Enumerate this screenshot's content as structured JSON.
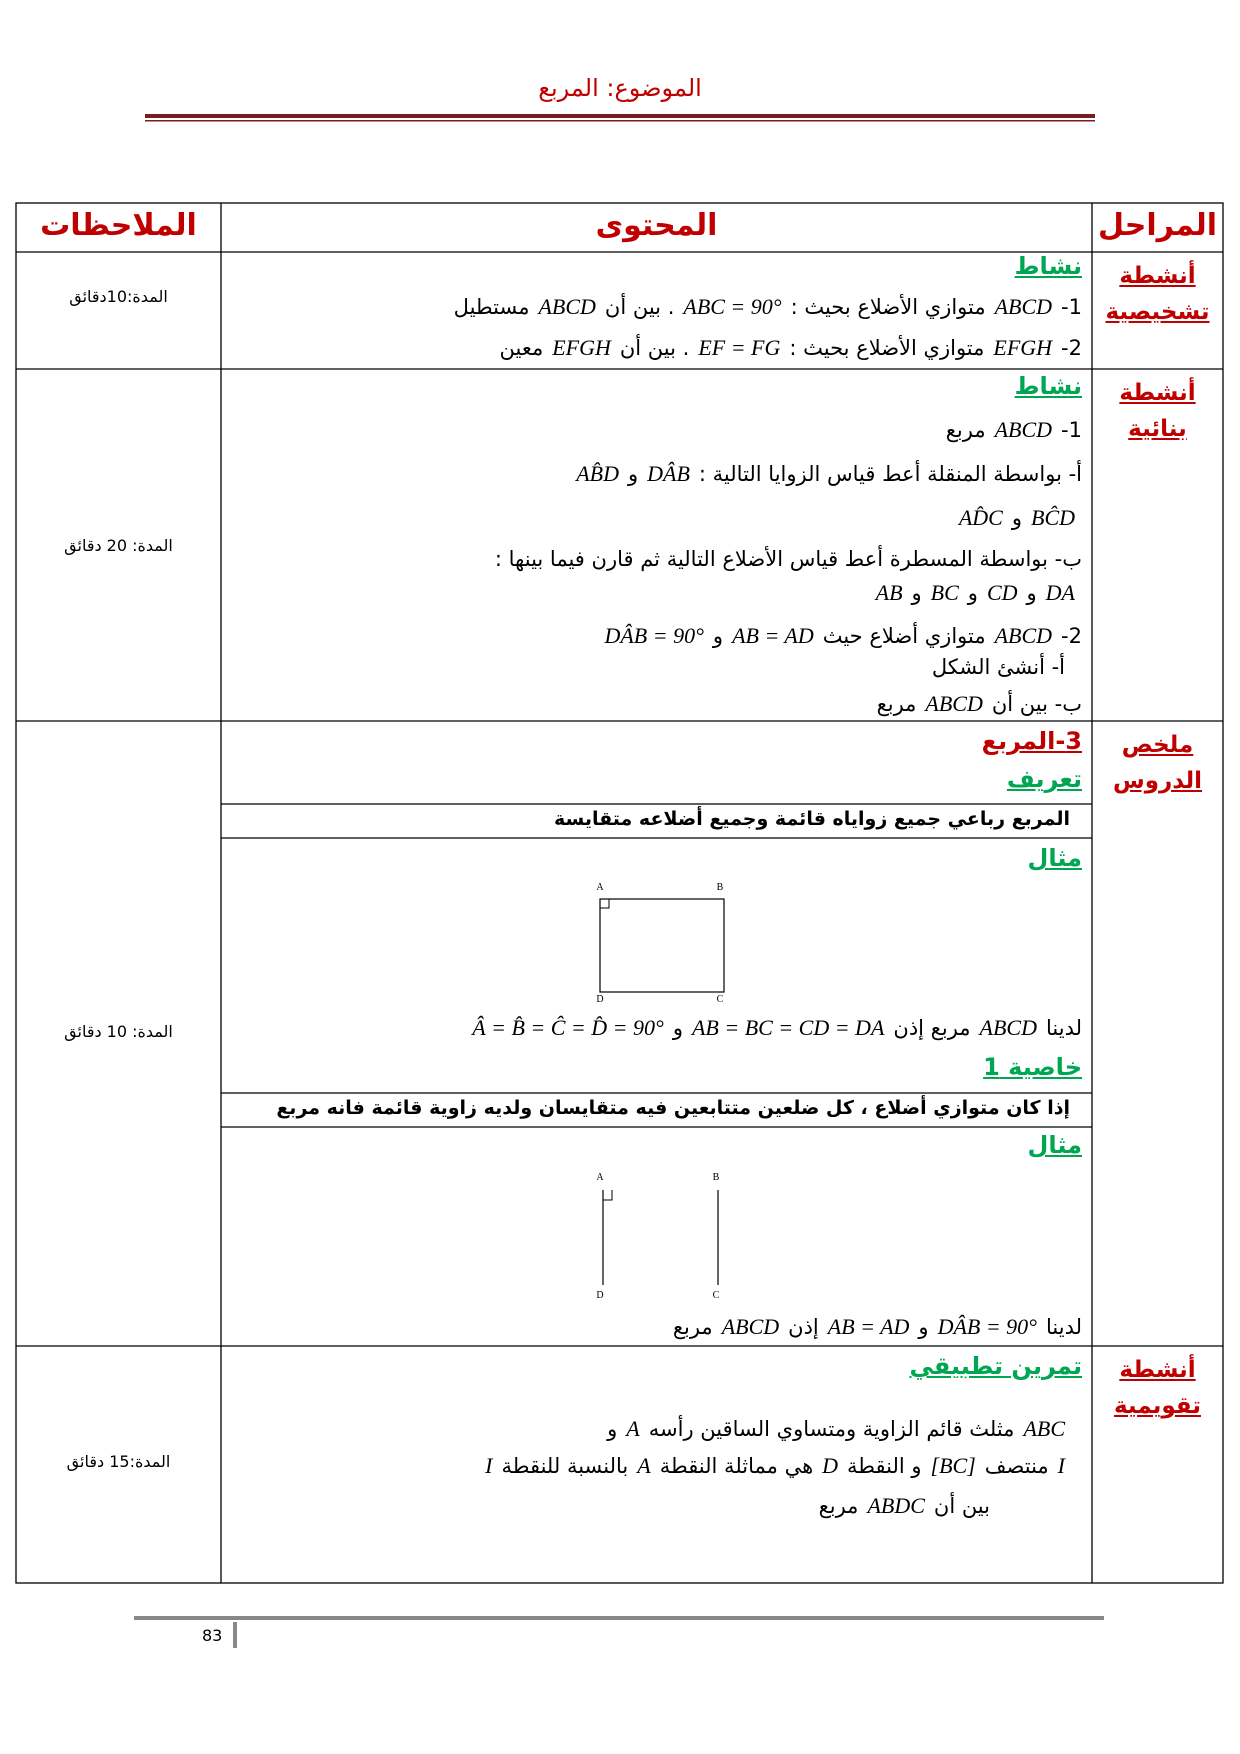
{
  "header": {
    "title": "الموضوع: المربع"
  },
  "table": {
    "headers": [
      "المراحل",
      "المحتوى",
      "الملاحظات"
    ],
    "rows": [
      {
        "phase": [
          "أنشطة",
          "تشخيصية"
        ],
        "notes": "المدة:10دقائق",
        "content": [
          {
            "heading": "نشاط",
            "color": "#00a651"
          },
          {
            "line": [
              "1-",
              "ABCD",
              "متوازي الأضلاع بحيث :",
              "ABC = 90°",
              ". بين أن",
              "ABCD",
              "مستطيل"
            ]
          },
          {
            "line": [
              "2-",
              "EFGH",
              "متوازي الأضلاع بحيث :",
              "EF = FG",
              ". بين أن",
              "EFGH",
              "معين"
            ]
          }
        ]
      },
      {
        "phase": [
          "أنشطة",
          "بنائية"
        ],
        "notes": "المدة: 20 دقائق",
        "content": [
          {
            "heading": "نشاط",
            "color": "#00a651"
          },
          {
            "line": [
              "1-",
              "ABCD",
              "مربع"
            ]
          },
          {
            "line": [
              "أ- بواسطة المنقلة أعط قياس الزوايا التالية :",
              "DÂB",
              "و",
              "AB̂D"
            ]
          },
          {
            "line": [
              "BĈD",
              "و",
              "AD̂C"
            ]
          },
          {
            "line": [
              "ب- بواسطة المسطرة أعط قياس الأضلاع التالية ثم قارن فيما بينها :"
            ]
          },
          {
            "line": [
              "DA",
              "و",
              "CD",
              "و",
              "BC",
              "و",
              "AB"
            ]
          },
          {
            "line": [
              "2-",
              "ABCD",
              "متوازي أضلاع حيث",
              "AB = AD",
              "و",
              "DÂB = 90°"
            ]
          },
          {
            "line": [
              "أ- أنشئ الشكل"
            ]
          },
          {
            "line": [
              "ب- بين أن",
              "ABCD",
              "مربع"
            ]
          }
        ]
      },
      {
        "phase": [
          "ملخص",
          "الدروس"
        ],
        "notes": "المدة: 10 دقائق",
        "content": [
          {
            "heading": "3-المربع",
            "color": "#c00000"
          },
          {
            "heading": "تعريف",
            "color": "#00a651"
          },
          {
            "box": "المربع رباعي جميع زواياه قائمة وجميع أضلاعه متقايسة"
          },
          {
            "heading": "مثال",
            "color": "#00a651"
          },
          {
            "figure": [
              "A",
              "B",
              "D",
              "C"
            ]
          },
          {
            "line": [
              "لدينا",
              "ABCD",
              "مربع إذن",
              "AB = BC = CD = DA",
              "و",
              "Â = B̂ = Ĉ = D̂ = 90°"
            ]
          },
          {
            "heading": "خاصية 1",
            "color": "#00a651"
          },
          {
            "box": "إذا كان متوازي أضلاع ، كل ضلعين متتابعين فيه متقايسان ولديه زاوية قائمة فانه مربع"
          },
          {
            "heading": "مثال",
            "color": "#00a651"
          },
          {
            "figure": [
              "A",
              "B",
              "D",
              "C"
            ]
          },
          {
            "line": [
              "لدينا",
              "DÂB = 90°",
              "و",
              "AB = AD",
              "إذن",
              "ABCD",
              "مربع"
            ]
          }
        ]
      },
      {
        "phase": [
          "أنشطة",
          "تقويمية"
        ],
        "notes": "المدة:15 دقائق",
        "content": [
          {
            "heading": "تمرين تطبيقي",
            "color": "#00a651"
          },
          {
            "line": [
              "ABC",
              "مثلث قائم الزاوية ومتساوي الساقين رأسه",
              "A",
              "و"
            ]
          },
          {
            "line": [
              "I",
              "منتصف",
              "[BC]",
              "و النقطة",
              "D",
              "هي مماثلة النقطة",
              "A",
              "بالنسبة للنقطة",
              "I"
            ]
          },
          {
            "line": [
              "بين أن",
              "ABDC",
              "مربع"
            ]
          }
        ]
      }
    ]
  },
  "footer": {
    "page_number": "83"
  }
}
